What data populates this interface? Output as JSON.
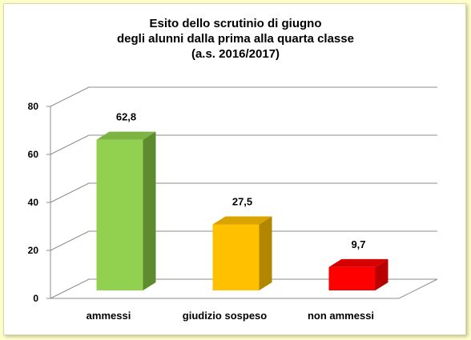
{
  "chart_data": {
    "type": "bar",
    "title_lines": [
      "Esito dello scrutinio di giugno",
      "degli alunni dalla prima alla quarta classe",
      "(a.s. 2016/2017)"
    ],
    "categories": [
      "ammessi",
      "giudizio sospeso",
      "non ammessi"
    ],
    "values": [
      62.8,
      27.5,
      9.7
    ],
    "value_labels": [
      "62,8",
      "27,5",
      "9,7"
    ],
    "yticks": [
      0,
      20,
      40,
      60,
      80
    ],
    "ylim": [
      0,
      80
    ],
    "grid": true,
    "legend": "none",
    "colors": {
      "front": [
        "#92d050",
        "#ffc000",
        "#ff0000"
      ],
      "side": [
        "#5e8a30",
        "#b38600",
        "#b80000"
      ],
      "top": [
        "#7cb342",
        "#d9a300",
        "#d60000"
      ]
    }
  }
}
